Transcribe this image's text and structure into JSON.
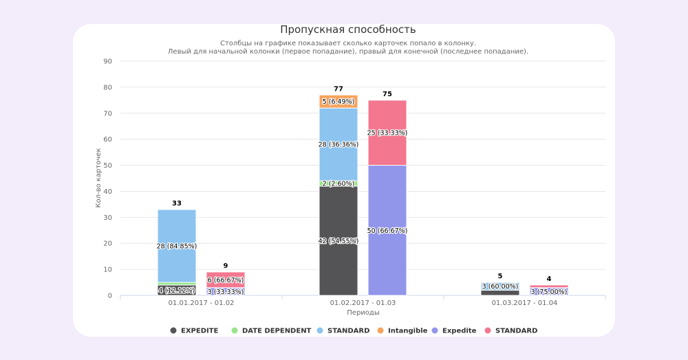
{
  "chart_data": {
    "type": "bar",
    "stacked": true,
    "title": "Пропускная способность",
    "subtitle": [
      "Столбцы на графике показывает сколько карточек попало в колонку.",
      "Левый для начальной колонки (первое попадание), правый для конечной (последнее попадание)."
    ],
    "xlabel": "Периоды",
    "ylabel": "Кол-во карточек",
    "ylim": [
      0,
      90
    ],
    "yticks": [
      0,
      10,
      20,
      30,
      40,
      50,
      60,
      70,
      80,
      90
    ],
    "grid": true,
    "legend_position": "bottom",
    "categories": [
      "01.01.2017 - 01.02",
      "01.02.2017 - 01.03",
      "01.03.2017 - 01.04"
    ],
    "stacks": [
      {
        "position": "left",
        "series": [
          {
            "name": "EXPEDITE",
            "color": "#545457",
            "values": [
              4,
              42,
              2
            ],
            "labels": [
              "4 (12.12%)",
              "42 (54.55%)",
              ""
            ]
          },
          {
            "name": "DATE DEPENDENT",
            "color": "#98e58a",
            "values": [
              1,
              2,
              0
            ],
            "labels": [
              "",
              "2 (2.60%)",
              ""
            ]
          },
          {
            "name": "STANDARD",
            "color": "#8cc4ef",
            "values": [
              28,
              28,
              3
            ],
            "labels": [
              "28 (84.85%)",
              "28 (36.36%)",
              "3 (60.00%)"
            ]
          },
          {
            "name": "Intangible",
            "color": "#f7a35c",
            "values": [
              0,
              5,
              0
            ],
            "labels": [
              "",
              "5 (6.49%)",
              ""
            ]
          }
        ],
        "totals": [
          33,
          77,
          5
        ]
      },
      {
        "position": "right",
        "series": [
          {
            "name": "Expedite",
            "color": "#9196ea",
            "values": [
              3,
              50,
              3
            ],
            "labels": [
              "3 (33.33%)",
              "50 (66.67%)",
              "3 (75.00%)"
            ]
          },
          {
            "name": "STANDARD",
            "color": "#f3778f",
            "values": [
              6,
              25,
              1
            ],
            "labels": [
              "6 (66.67%)",
              "25 (33.33%)",
              ""
            ]
          }
        ],
        "totals": [
          9,
          75,
          4
        ]
      }
    ],
    "legend": [
      {
        "name": "EXPEDITE",
        "color": "#545457"
      },
      {
        "name": "DATE DEPENDENT",
        "color": "#98e58a"
      },
      {
        "name": "STANDARD",
        "color": "#8cc4ef"
      },
      {
        "name": "Intangible",
        "color": "#f7a35c"
      },
      {
        "name": "Expedite",
        "color": "#9196ea"
      },
      {
        "name": "STANDARD",
        "color": "#f3778f"
      }
    ]
  }
}
